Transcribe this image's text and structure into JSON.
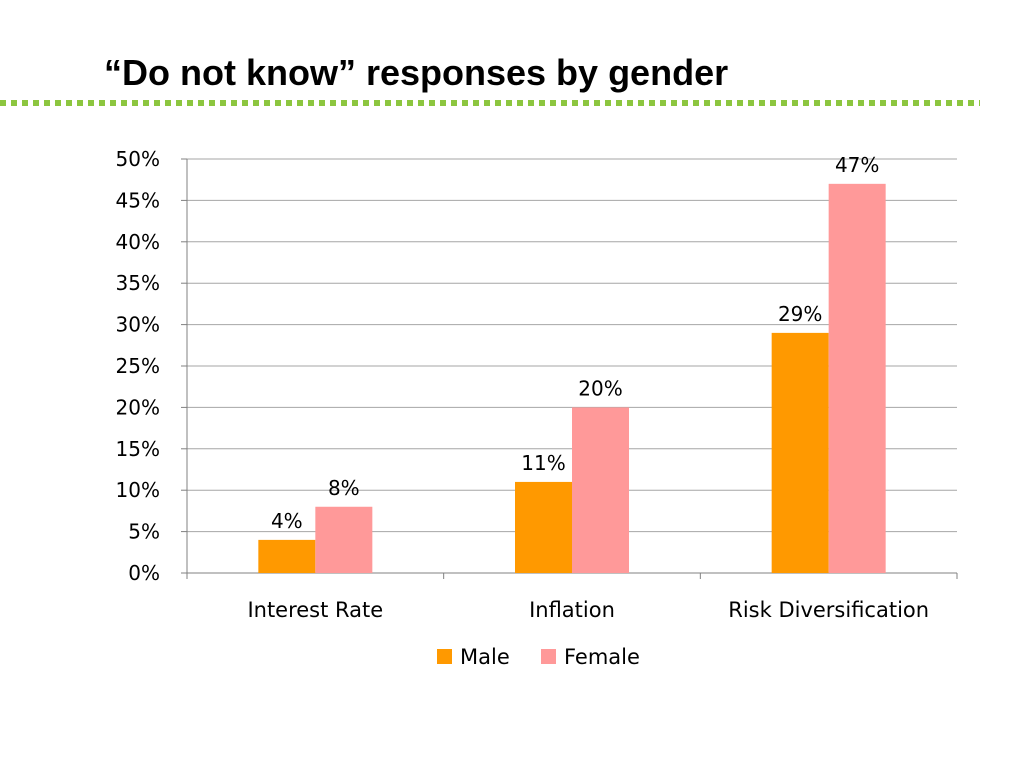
{
  "slide": {
    "title": "“Do not know” responses by gender"
  },
  "colors": {
    "divider": "#8cc63f",
    "male": "#ff9900",
    "female": "#ff9999",
    "gridline": "#a6a6a6"
  },
  "chart_data": {
    "type": "bar",
    "title": "“Do not know” responses by gender",
    "xlabel": "",
    "ylabel": "",
    "categories": [
      "Interest Rate",
      "Inflation",
      "Risk Diversification"
    ],
    "series": [
      {
        "name": "Male",
        "values": [
          4,
          11,
          29
        ],
        "labels": [
          "4%",
          "11%",
          "29%"
        ]
      },
      {
        "name": "Female",
        "values": [
          8,
          20,
          47
        ],
        "labels": [
          "8%",
          "20%",
          "47%"
        ]
      }
    ],
    "ylim": [
      0,
      50
    ],
    "yticks": [
      {
        "value": 0,
        "label": "0%"
      },
      {
        "value": 5,
        "label": "5%"
      },
      {
        "value": 10,
        "label": "10%"
      },
      {
        "value": 15,
        "label": "15%"
      },
      {
        "value": 20,
        "label": "20%"
      },
      {
        "value": 25,
        "label": "25%"
      },
      {
        "value": 30,
        "label": "30%"
      },
      {
        "value": 35,
        "label": "35%"
      },
      {
        "value": 40,
        "label": "40%"
      },
      {
        "value": 45,
        "label": "45%"
      },
      {
        "value": 50,
        "label": "50%"
      }
    ],
    "grid": true,
    "legend_position": "bottom"
  }
}
